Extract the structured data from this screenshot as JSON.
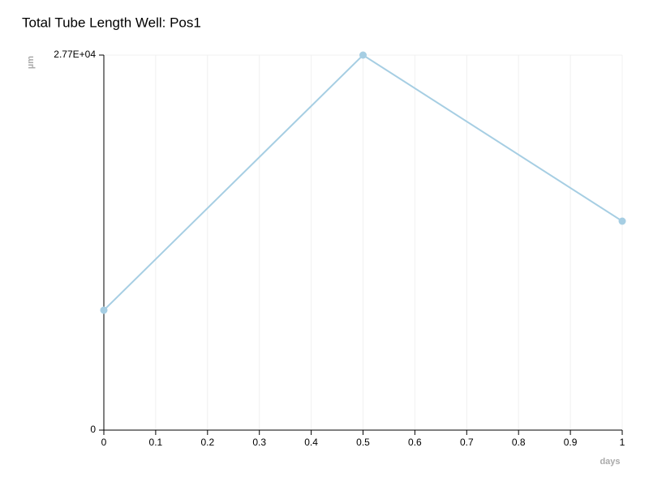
{
  "chart_data": {
    "type": "line",
    "title": "Total Tube Length Well: Pos1",
    "x_label": "days",
    "y_label": "µm",
    "x": [
      0,
      0.5,
      1
    ],
    "values": [
      8855,
      27700,
      15435
    ],
    "color": "#a6cee3",
    "xlim": [
      0,
      1
    ],
    "xticks": [
      0,
      0.1,
      0.2,
      0.3,
      0.4,
      0.5,
      0.6,
      0.7,
      0.8,
      0.9,
      1
    ],
    "ylim": [
      0,
      27700
    ],
    "yticks": [
      0,
      {
        "value": 27700,
        "label": "2.77E+04"
      }
    ],
    "grid": true
  }
}
